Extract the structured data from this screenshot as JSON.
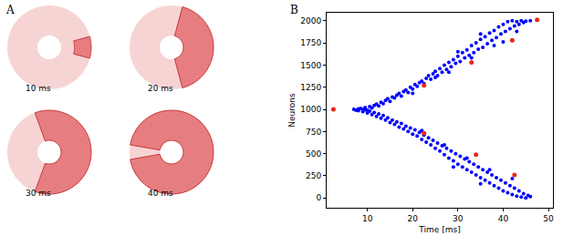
{
  "panel_a": {
    "label": "A",
    "type": "diagram",
    "frames": [
      {
        "label": "10 ms",
        "active_arc_deg": 30
      },
      {
        "label": "20 ms",
        "active_arc_deg": 150
      },
      {
        "label": "30 ms",
        "active_arc_deg": 220
      },
      {
        "label": "40 ms",
        "active_arc_deg": 340
      }
    ]
  },
  "chart_data": {
    "type": "scatter",
    "panel_label": "B",
    "x_label": "Time [ms]",
    "y_label": "Neurons",
    "xlim": [
      1,
      51
    ],
    "ylim": [
      -110,
      2090
    ],
    "xticks": [
      10,
      20,
      30,
      40,
      50
    ],
    "yticks": [
      0,
      250,
      500,
      750,
      1000,
      1250,
      1500,
      1750,
      2000
    ],
    "grid": false,
    "marker": "circle",
    "series": [
      {
        "color": "#0000ff",
        "x": [
          7,
          8,
          8.5,
          9,
          9.5,
          10,
          10.5,
          11,
          11.5,
          12,
          12.5,
          13,
          13.5,
          14,
          14.5,
          15,
          15.5,
          16,
          16.5,
          17,
          17.5,
          18,
          18.5,
          19,
          19.5,
          20,
          20.5,
          21,
          21.5,
          22,
          22.5,
          23,
          23.5,
          24,
          24.5,
          25,
          25.5,
          26,
          26.5,
          27,
          27.5,
          28,
          28.5,
          29,
          29.5,
          30,
          30.5,
          31,
          31.5,
          32,
          32.5,
          33,
          33.5,
          34,
          34.5,
          35,
          35.5,
          36,
          36.5,
          37,
          37.5,
          38,
          38.5,
          39,
          39.5,
          40,
          40.5,
          41,
          41.5,
          42,
          42.5,
          43,
          43.5,
          44,
          44.5,
          45,
          46,
          20,
          25,
          30,
          35,
          40,
          28,
          33,
          38,
          43,
          7.5,
          8,
          9,
          9.5,
          10,
          10.5,
          11,
          11.5,
          12,
          12.5,
          13,
          13.5,
          14,
          14.5,
          15,
          15.5,
          16,
          16.5,
          17,
          17.5,
          18,
          18.5,
          19,
          19.5,
          20,
          20.5,
          21,
          21.5,
          22,
          22.5,
          23,
          23.5,
          24,
          24.5,
          25,
          25.5,
          26,
          26.5,
          27,
          27.5,
          28,
          28.5,
          29,
          29.5,
          30,
          30.5,
          31,
          31.5,
          32,
          32.5,
          33,
          33.5,
          34,
          34.5,
          35,
          35.5,
          36,
          36.5,
          37,
          37.5,
          38,
          38.5,
          39,
          39.5,
          40,
          40.5,
          41,
          41.5,
          42,
          42.5,
          43,
          43.5,
          44,
          44.5,
          45,
          45.5,
          46,
          22,
          27,
          32,
          37,
          42,
          29,
          35
        ],
        "values": [
          1000,
          985,
          1010,
          1000,
          1020,
          990,
          1030,
          1015,
          1045,
          1060,
          1040,
          1080,
          1065,
          1100,
          1120,
          1090,
          1140,
          1130,
          1160,
          1180,
          1150,
          1200,
          1220,
          1190,
          1250,
          1230,
          1280,
          1260,
          1300,
          1320,
          1290,
          1350,
          1380,
          1340,
          1400,
          1430,
          1380,
          1460,
          1420,
          1500,
          1450,
          1530,
          1480,
          1560,
          1520,
          1600,
          1540,
          1640,
          1580,
          1670,
          1610,
          1720,
          1640,
          1750,
          1680,
          1790,
          1700,
          1820,
          1740,
          1860,
          1780,
          1890,
          1810,
          1930,
          1850,
          1960,
          1880,
          1990,
          1910,
          2000,
          1940,
          1990,
          1960,
          2000,
          1980,
          1995,
          2000,
          1180,
          1360,
          1650,
          1850,
          1760,
          1420,
          1580,
          1720,
          1880,
          990,
          1005,
          975,
          995,
          960,
          980,
          940,
          965,
          920,
          950,
          900,
          930,
          880,
          905,
          850,
          880,
          830,
          860,
          800,
          840,
          780,
          810,
          750,
          790,
          720,
          770,
          700,
          740,
          660,
          710,
          630,
          680,
          600,
          650,
          560,
          620,
          530,
          590,
          490,
          560,
          450,
          530,
          420,
          500,
          380,
          470,
          350,
          440,
          320,
          410,
          290,
          380,
          260,
          350,
          230,
          320,
          200,
          290,
          170,
          260,
          140,
          230,
          110,
          200,
          80,
          170,
          60,
          140,
          40,
          110,
          20,
          80,
          10,
          50,
          0,
          30,
          15,
          760,
          600,
          450,
          320,
          220,
          350,
          160
        ]
      },
      {
        "color": "#e8291c",
        "x": [
          2.5,
          22.5,
          22.5,
          33,
          34,
          42,
          42.5,
          47.5
        ],
        "values": [
          1000,
          1270,
          730,
          1530,
          490,
          1780,
          260,
          2010
        ]
      }
    ]
  }
}
